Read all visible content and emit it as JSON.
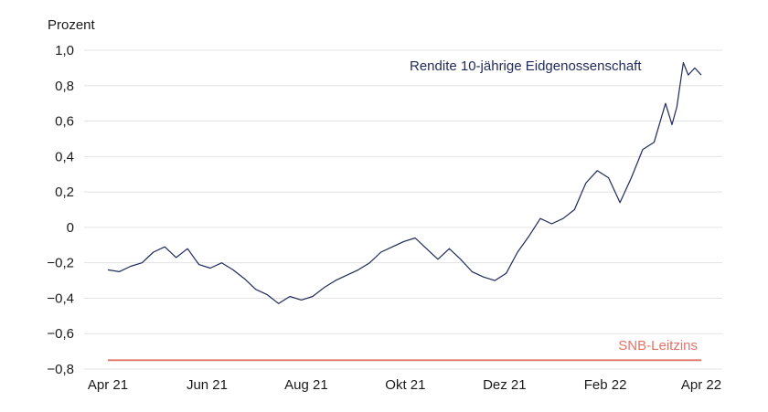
{
  "chart_data": {
    "type": "line",
    "ylabel": "Prozent",
    "ylim": [
      -0.8,
      1.0
    ],
    "y_ticks": [
      "1,0",
      "0,8",
      "0,6",
      "0,4",
      "0,2",
      "0",
      "−0,2",
      "−0,4",
      "−0,6",
      "−0,8"
    ],
    "y_tick_values": [
      1.0,
      0.8,
      0.6,
      0.4,
      0.2,
      0.0,
      -0.2,
      -0.4,
      -0.6,
      -0.8
    ],
    "x_ticks": [
      "Apr 21",
      "Jun 21",
      "Aug 21",
      "Okt 21",
      "Dez 21",
      "Feb 22",
      "Apr 22"
    ],
    "x_tick_dates": [
      "2021-04-01",
      "2021-06-01",
      "2021-08-01",
      "2021-10-01",
      "2021-12-01",
      "2022-02-01",
      "2022-04-01"
    ],
    "grid": "horizontal",
    "series": [
      {
        "name": "Rendite 10-jährige Eidgenossenschaft",
        "color": "#1f2a5a",
        "x": [
          "2021-04-01",
          "2021-04-08",
          "2021-04-15",
          "2021-04-22",
          "2021-04-29",
          "2021-05-06",
          "2021-05-13",
          "2021-05-20",
          "2021-05-27",
          "2021-06-03",
          "2021-06-10",
          "2021-06-17",
          "2021-06-24",
          "2021-07-01",
          "2021-07-08",
          "2021-07-15",
          "2021-07-22",
          "2021-07-29",
          "2021-08-05",
          "2021-08-12",
          "2021-08-19",
          "2021-08-26",
          "2021-09-02",
          "2021-09-09",
          "2021-09-16",
          "2021-09-23",
          "2021-09-30",
          "2021-10-07",
          "2021-10-14",
          "2021-10-21",
          "2021-10-28",
          "2021-11-04",
          "2021-11-11",
          "2021-11-18",
          "2021-11-25",
          "2021-12-02",
          "2021-12-09",
          "2021-12-16",
          "2021-12-23",
          "2021-12-30",
          "2022-01-06",
          "2022-01-13",
          "2022-01-20",
          "2022-01-27",
          "2022-02-03",
          "2022-02-10",
          "2022-02-17",
          "2022-02-24",
          "2022-03-03",
          "2022-03-10",
          "2022-03-14",
          "2022-03-17",
          "2022-03-21",
          "2022-03-24",
          "2022-03-28",
          "2022-04-01"
        ],
        "values": [
          -0.24,
          -0.25,
          -0.22,
          -0.2,
          -0.14,
          -0.11,
          -0.17,
          -0.12,
          -0.21,
          -0.23,
          -0.2,
          -0.24,
          -0.29,
          -0.35,
          -0.38,
          -0.43,
          -0.39,
          -0.41,
          -0.39,
          -0.34,
          -0.3,
          -0.27,
          -0.24,
          -0.2,
          -0.14,
          -0.11,
          -0.08,
          -0.06,
          -0.12,
          -0.18,
          -0.12,
          -0.18,
          -0.25,
          -0.28,
          -0.3,
          -0.26,
          -0.14,
          -0.05,
          0.05,
          0.02,
          0.05,
          0.1,
          0.25,
          0.32,
          0.28,
          0.14,
          0.28,
          0.44,
          0.48,
          0.7,
          0.58,
          0.68,
          0.93,
          0.86,
          0.9,
          0.86
        ]
      },
      {
        "name": "SNB-Leitzins",
        "color": "#e07468",
        "x": [
          "2021-04-01",
          "2022-04-01"
        ],
        "values": [
          -0.75,
          -0.75
        ]
      }
    ]
  }
}
